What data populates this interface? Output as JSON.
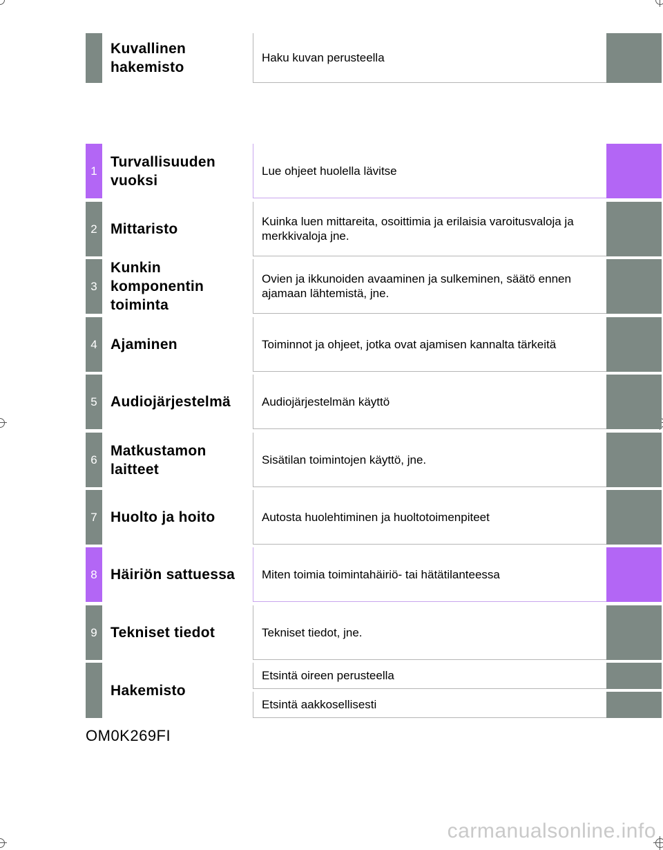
{
  "sections": [
    {
      "number": "",
      "title": "Kuvallinen hakemisto",
      "description": "Haku kuvan perusteella"
    },
    {
      "number": "1",
      "title": "Turvallisuuden vuoksi",
      "description": "Lue ohjeet huolella lävitse"
    },
    {
      "number": "2",
      "title": "Mittaristo",
      "description": "Kuinka luen mittareita, osoittimia ja erilaisia varoitusvaloja ja merkkivaloja jne."
    },
    {
      "number": "3",
      "title": "Kunkin komponentin toiminta",
      "description": "Ovien ja ikkunoiden avaaminen ja sulkeminen, säätö ennen ajamaan lähtemistä, jne."
    },
    {
      "number": "4",
      "title": "Ajaminen",
      "description": "Toiminnot ja ohjeet, jotka ovat ajamisen kannalta tärkeitä"
    },
    {
      "number": "5",
      "title": "Audiojärjestelmä",
      "description": "Audiojärjestelmän käyttö"
    },
    {
      "number": "6",
      "title": "Matkustamon laitteet",
      "description": "Sisätilan toimintojen käyttö, jne."
    },
    {
      "number": "7",
      "title": "Huolto ja hoito",
      "description": "Autosta huolehtiminen ja huoltotoimenpiteet"
    },
    {
      "number": "8",
      "title": "Häiriön sattuessa",
      "description": "Miten toimia toimintahäiriö- tai hätätilanteessa"
    },
    {
      "number": "9",
      "title": "Tekniset tiedot",
      "description": "Tekniset tiedot, jne."
    }
  ],
  "index": {
    "title": "Hakemisto",
    "entries": [
      "Etsintä oireen perusteella",
      "Etsintä aakkosellisesti"
    ]
  },
  "document_code": "OM0K269FI",
  "watermark": "carmanualsonline.info",
  "colors": {
    "tab_gray": "#7d8984",
    "tab_purple": "#b366f5"
  }
}
